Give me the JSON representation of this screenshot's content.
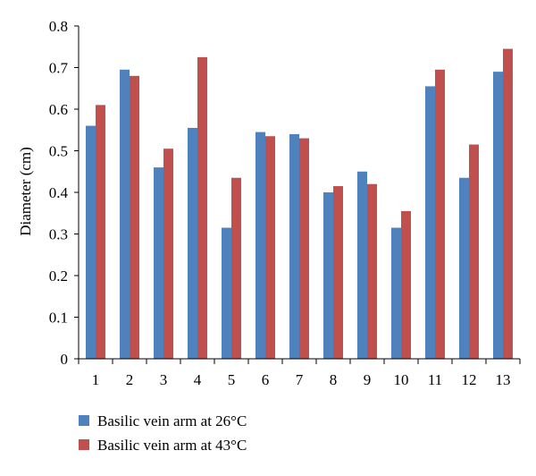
{
  "chart_data": {
    "type": "bar",
    "title": "",
    "xlabel": "",
    "ylabel": "Diameter (cm)",
    "ylim": [
      0,
      0.8
    ],
    "yticks": [
      "0",
      "0.1",
      "0.2",
      "0.3",
      "0.4",
      "0.5",
      "0.6",
      "0.7",
      "0.8"
    ],
    "grid": false,
    "legend_position": "bottom-left",
    "categories": [
      "1",
      "2",
      "3",
      "4",
      "5",
      "6",
      "7",
      "8",
      "9",
      "10",
      "11",
      "12",
      "13"
    ],
    "series": [
      {
        "name": "Basilic vein arm at 26°C",
        "color": "#4F81BD",
        "values": [
          0.56,
          0.695,
          0.46,
          0.555,
          0.315,
          0.545,
          0.54,
          0.4,
          0.45,
          0.315,
          0.655,
          0.435,
          0.69
        ]
      },
      {
        "name": "Basilic vein arm at 43°C",
        "color": "#C0504D",
        "values": [
          0.61,
          0.68,
          0.505,
          0.725,
          0.435,
          0.535,
          0.53,
          0.415,
          0.42,
          0.355,
          0.695,
          0.515,
          0.745
        ]
      }
    ]
  }
}
